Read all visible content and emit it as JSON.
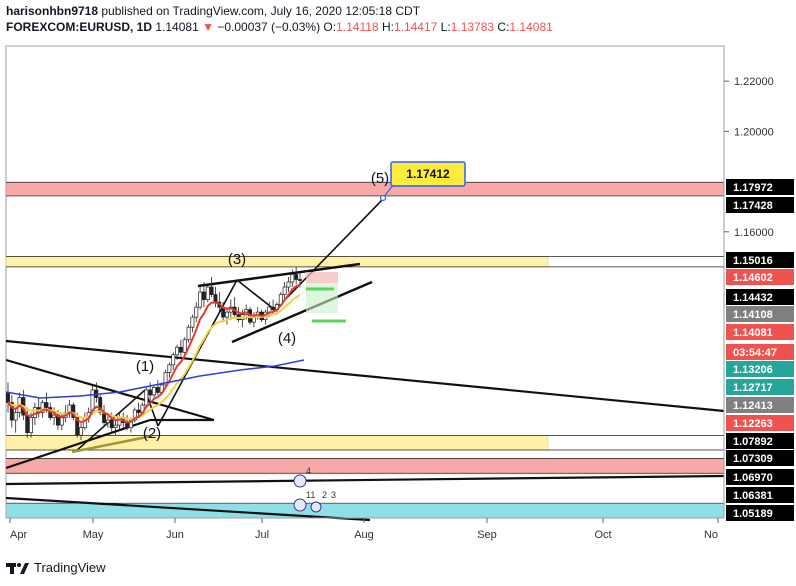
{
  "header": {
    "author": "harisonhbn9718",
    "published": "published on TradingView.com, July 16, 2020 12:05:18 CDT",
    "symbol": "FOREXCOM:EURUSD, 1D",
    "last": "1.14081",
    "change": "−0.00037 (−0.03%)",
    "o_label": "O:",
    "o": "1.14118",
    "h_label": "H:",
    "h": "1.14417",
    "l_label": "L:",
    "l": "1.13783",
    "c_label": "C:",
    "c": "1.14081"
  },
  "footer": {
    "brand": "TradingView"
  },
  "colors": {
    "up": "#26a69a",
    "down": "#ef5350",
    "yellow_zone": "#fff2a8",
    "red_zone": "#f7a9a8",
    "cyan_zone": "#8fdfe8",
    "callout": "#ffeb3b",
    "ema_red": "#e53935",
    "ema_yellow": "#f4d03f",
    "sma_blue": "#2f3fd6"
  },
  "chart_data": {
    "type": "candlestick",
    "title": "FOREXCOM:EURUSD, 1D",
    "xlabel": "",
    "ylabel": "",
    "ylim": [
      1.046,
      1.234
    ],
    "x_ticks": [
      "Apr",
      "May",
      "Jun",
      "Jul",
      "Aug",
      "Sep",
      "Oct",
      "No"
    ],
    "y_ticks": [
      "1.22000",
      "1.20000",
      "1.16000"
    ],
    "price_tags": [
      {
        "label": "1.17972",
        "bg": "#000000",
        "fg": "#ffffff",
        "value": 1.17972
      },
      {
        "label": "1.17428",
        "bg": "#000000",
        "fg": "#ffffff",
        "value": 1.17428
      },
      {
        "label": "1.15016",
        "bg": "#000000",
        "fg": "#ffffff",
        "value": 1.15016
      },
      {
        "label": "1.14602",
        "bg": "#ef5350",
        "fg": "#ffffff",
        "value": 1.14602
      },
      {
        "label": "1.14432",
        "bg": "#000000",
        "fg": "#ffffff",
        "value": 1.14432
      },
      {
        "label": "1.14108",
        "bg": "#808080",
        "fg": "#ffffff",
        "value": 1.14108
      },
      {
        "label": "1.14081",
        "bg": "#ef5350",
        "fg": "#ffffff",
        "value": 1.14081
      },
      {
        "label": "03:54:47",
        "bg": "#ef5350",
        "fg": "#ffffff",
        "value": 1.138
      },
      {
        "label": "1.13206",
        "bg": "#26a69a",
        "fg": "#ffffff",
        "value": 1.13206
      },
      {
        "label": "1.12717",
        "bg": "#26a69a",
        "fg": "#ffffff",
        "value": 1.12717
      },
      {
        "label": "1.12413",
        "bg": "#808080",
        "fg": "#ffffff",
        "value": 1.12413
      },
      {
        "label": "1.12263",
        "bg": "#ef5350",
        "fg": "#ffffff",
        "value": 1.12263
      },
      {
        "label": "1.07892",
        "bg": "#000000",
        "fg": "#ffffff",
        "value": 1.07892
      },
      {
        "label": "1.07309",
        "bg": "#000000",
        "fg": "#ffffff",
        "value": 1.07309
      },
      {
        "label": "1.06970",
        "bg": "#000000",
        "fg": "#ffffff",
        "value": 1.0697
      },
      {
        "label": "1.06381",
        "bg": "#000000",
        "fg": "#ffffff",
        "value": 1.06381
      },
      {
        "label": "1.05189",
        "bg": "#000000",
        "fg": "#ffffff",
        "value": 1.05189
      }
    ],
    "zones": [
      {
        "name": "red-resistance-zone",
        "from": 1.17428,
        "to": 1.17972,
        "color": "#f7a9a8",
        "extent": "full"
      },
      {
        "name": "yellow-resistance-zone",
        "from": 1.14602,
        "to": 1.15016,
        "color": "#fff2a8",
        "extent": "to-sep"
      },
      {
        "name": "yellow-support-zone",
        "from": 1.07309,
        "to": 1.07892,
        "color": "#fff2a8",
        "extent": "to-sep"
      },
      {
        "name": "red-support-zone",
        "from": 1.06381,
        "to": 1.0697,
        "color": "#f7a9a8",
        "extent": "full"
      },
      {
        "name": "cyan-support-zone",
        "from": 1.046,
        "to": 1.05189,
        "color": "#8fdfe8",
        "extent": "full"
      }
    ],
    "wave_labels": [
      "(1)",
      "(2)",
      "(3)",
      "(4)",
      "(5)"
    ],
    "target_label": "1.17412",
    "event_labels": [
      "4",
      "11",
      "2",
      "3"
    ],
    "candles": [
      [
        1.096,
        1.1,
        1.088,
        1.092
      ],
      [
        1.092,
        1.095,
        1.082,
        1.085
      ],
      [
        1.085,
        1.09,
        1.08,
        1.088
      ],
      [
        1.088,
        1.096,
        1.086,
        1.094
      ],
      [
        1.094,
        1.097,
        1.085,
        1.087
      ],
      [
        1.087,
        1.09,
        1.078,
        1.08
      ],
      [
        1.08,
        1.088,
        1.078,
        1.086
      ],
      [
        1.086,
        1.092,
        1.083,
        1.09
      ],
      [
        1.09,
        1.094,
        1.086,
        1.088
      ],
      [
        1.088,
        1.093,
        1.086,
        1.092
      ],
      [
        1.092,
        1.096,
        1.088,
        1.09
      ],
      [
        1.09,
        1.092,
        1.085,
        1.086
      ],
      [
        1.086,
        1.09,
        1.083,
        1.087
      ],
      [
        1.087,
        1.089,
        1.081,
        1.083
      ],
      [
        1.083,
        1.088,
        1.081,
        1.086
      ],
      [
        1.086,
        1.091,
        1.084,
        1.088
      ],
      [
        1.088,
        1.093,
        1.086,
        1.091
      ],
      [
        1.091,
        1.092,
        1.085,
        1.086
      ],
      [
        1.086,
        1.088,
        1.078,
        1.079
      ],
      [
        1.079,
        1.084,
        1.077,
        1.082
      ],
      [
        1.082,
        1.088,
        1.081,
        1.086
      ],
      [
        1.086,
        1.09,
        1.084,
        1.088
      ],
      [
        1.088,
        1.099,
        1.087,
        1.097
      ],
      [
        1.097,
        1.1,
        1.092,
        1.094
      ],
      [
        1.094,
        1.095,
        1.087,
        1.088
      ],
      [
        1.088,
        1.091,
        1.083,
        1.084
      ],
      [
        1.084,
        1.087,
        1.082,
        1.085
      ],
      [
        1.085,
        1.088,
        1.08,
        1.082
      ],
      [
        1.082,
        1.085,
        1.079,
        1.083
      ],
      [
        1.083,
        1.088,
        1.081,
        1.086
      ],
      [
        1.086,
        1.088,
        1.082,
        1.084
      ],
      [
        1.084,
        1.087,
        1.081,
        1.082
      ],
      [
        1.082,
        1.086,
        1.08,
        1.085
      ],
      [
        1.085,
        1.09,
        1.084,
        1.089
      ],
      [
        1.089,
        1.092,
        1.086,
        1.088
      ],
      [
        1.088,
        1.092,
        1.087,
        1.091
      ],
      [
        1.091,
        1.098,
        1.09,
        1.097
      ],
      [
        1.097,
        1.1,
        1.093,
        1.095
      ],
      [
        1.095,
        1.099,
        1.094,
        1.098
      ],
      [
        1.098,
        1.101,
        1.095,
        1.096
      ],
      [
        1.096,
        1.1,
        1.095,
        1.099
      ],
      [
        1.099,
        1.105,
        1.098,
        1.104
      ],
      [
        1.104,
        1.108,
        1.102,
        1.107
      ],
      [
        1.107,
        1.112,
        1.105,
        1.111
      ],
      [
        1.111,
        1.115,
        1.109,
        1.114
      ],
      [
        1.114,
        1.117,
        1.11,
        1.112
      ],
      [
        1.112,
        1.118,
        1.111,
        1.117
      ],
      [
        1.117,
        1.123,
        1.116,
        1.122
      ],
      [
        1.122,
        1.127,
        1.12,
        1.126
      ],
      [
        1.126,
        1.132,
        1.124,
        1.13
      ],
      [
        1.13,
        1.138,
        1.129,
        1.136
      ],
      [
        1.136,
        1.14,
        1.13,
        1.133
      ],
      [
        1.133,
        1.139,
        1.132,
        1.138
      ],
      [
        1.138,
        1.142,
        1.134,
        1.135
      ],
      [
        1.135,
        1.138,
        1.13,
        1.132
      ],
      [
        1.132,
        1.136,
        1.128,
        1.13
      ],
      [
        1.13,
        1.132,
        1.124,
        1.126
      ],
      [
        1.126,
        1.13,
        1.123,
        1.128
      ],
      [
        1.128,
        1.133,
        1.125,
        1.13
      ],
      [
        1.13,
        1.134,
        1.126,
        1.127
      ],
      [
        1.127,
        1.13,
        1.124,
        1.125
      ],
      [
        1.125,
        1.129,
        1.122,
        1.127
      ],
      [
        1.127,
        1.131,
        1.125,
        1.129
      ],
      [
        1.129,
        1.13,
        1.123,
        1.124
      ],
      [
        1.124,
        1.128,
        1.122,
        1.126
      ],
      [
        1.126,
        1.13,
        1.125,
        1.128
      ],
      [
        1.128,
        1.129,
        1.124,
        1.125
      ],
      [
        1.125,
        1.129,
        1.123,
        1.128
      ],
      [
        1.128,
        1.132,
        1.126,
        1.13
      ],
      [
        1.13,
        1.133,
        1.127,
        1.129
      ],
      [
        1.129,
        1.132,
        1.127,
        1.131
      ],
      [
        1.131,
        1.136,
        1.13,
        1.135
      ],
      [
        1.135,
        1.14,
        1.133,
        1.138
      ],
      [
        1.138,
        1.142,
        1.136,
        1.14
      ],
      [
        1.14,
        1.145,
        1.138,
        1.143
      ],
      [
        1.143,
        1.146,
        1.139,
        1.141
      ],
      [
        1.141,
        1.144,
        1.1378,
        1.1408
      ]
    ]
  }
}
